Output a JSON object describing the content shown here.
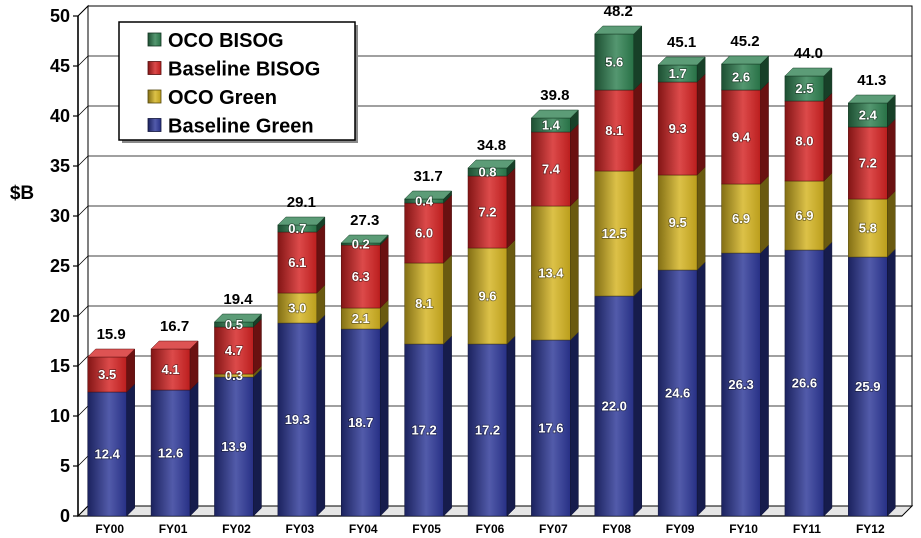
{
  "chart_data": {
    "type": "bar",
    "stacked": true,
    "ylabel": "$B",
    "ylim": [
      0,
      50
    ],
    "yticks": [
      0,
      5,
      10,
      15,
      20,
      25,
      30,
      35,
      40,
      45,
      50
    ],
    "grid": true,
    "legend_position": "top-left",
    "categories": [
      "FY00",
      "FY01",
      "FY02",
      "FY03",
      "FY04",
      "FY05",
      "FY06",
      "FY07",
      "FY08",
      "FY09",
      "FY10",
      "FY11",
      "FY12"
    ],
    "series": [
      {
        "name": "Baseline Green",
        "color": "#2c3797",
        "values": [
          12.4,
          12.6,
          13.9,
          19.3,
          18.7,
          17.2,
          17.2,
          17.6,
          22.0,
          24.6,
          26.3,
          26.6,
          25.9
        ]
      },
      {
        "name": "OCO Green",
        "color": "#d4b320",
        "values": [
          null,
          null,
          0.3,
          3.0,
          2.1,
          8.1,
          9.6,
          13.4,
          12.5,
          9.5,
          6.9,
          6.9,
          5.8
        ]
      },
      {
        "name": "Baseline BISOG",
        "color": "#d42222",
        "values": [
          3.5,
          4.1,
          4.7,
          6.1,
          6.3,
          6.0,
          7.2,
          7.4,
          8.1,
          9.3,
          9.4,
          8.0,
          7.2
        ]
      },
      {
        "name": "OCO BISOG",
        "color": "#2e8050",
        "values": [
          null,
          null,
          0.5,
          0.7,
          0.2,
          0.4,
          0.8,
          1.4,
          5.6,
          1.7,
          2.6,
          2.5,
          2.4
        ]
      }
    ],
    "totals": [
      15.9,
      16.7,
      19.4,
      29.1,
      27.3,
      31.7,
      34.8,
      39.8,
      48.2,
      45.1,
      45.2,
      44.0,
      41.3
    ]
  }
}
